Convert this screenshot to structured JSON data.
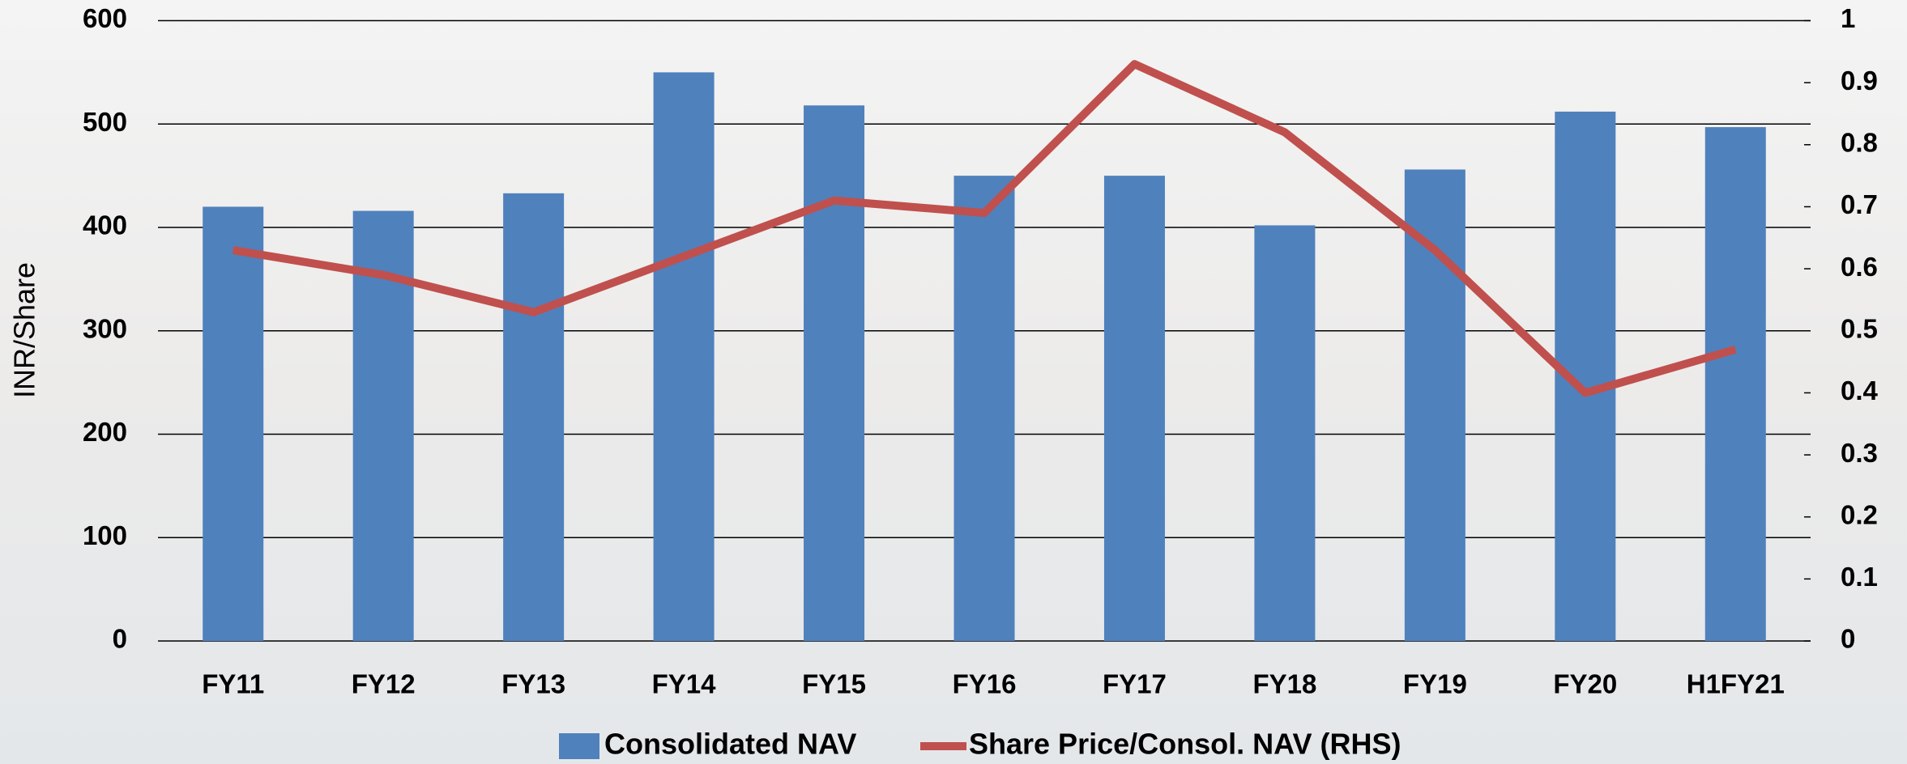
{
  "chart_data": {
    "type": "bar_line",
    "y_label": "INR/Share",
    "categories": [
      "FY11",
      "FY12",
      "FY13",
      "FY14",
      "FY15",
      "FY16",
      "FY17",
      "FY18",
      "FY19",
      "FY20",
      "H1FY21"
    ],
    "series": [
      {
        "name": "Consolidated NAV",
        "type": "bar",
        "color": "#4f81bd",
        "values": [
          420,
          416,
          433,
          550,
          518,
          450,
          450,
          402,
          456,
          512,
          497
        ]
      },
      {
        "name": "Share Price/Consol. NAV (RHS)",
        "type": "line",
        "axis": "y2",
        "color": "#c0504d",
        "values": [
          0.63,
          0.59,
          0.53,
          0.62,
          0.71,
          0.69,
          0.93,
          0.82,
          0.63,
          0.4,
          0.47
        ]
      }
    ],
    "ylim": [
      0,
      600
    ],
    "yticks": [
      0,
      100,
      200,
      300,
      400,
      500,
      600
    ],
    "y2lim": [
      0,
      1
    ],
    "y2ticks": [
      0,
      0.1,
      0.2,
      0.3,
      0.4,
      0.5,
      0.6,
      0.7,
      0.8,
      0.9,
      1
    ],
    "grid": true,
    "legend": "bottom"
  }
}
